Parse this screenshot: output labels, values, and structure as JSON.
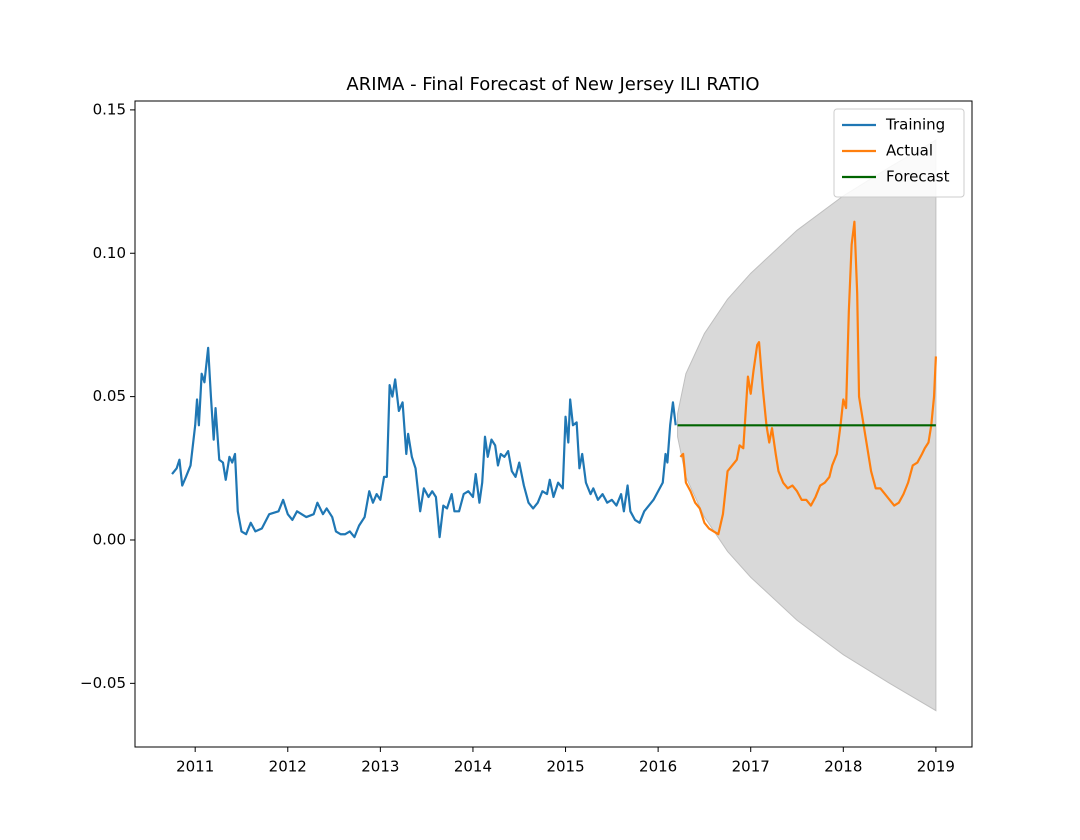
{
  "chart_data": {
    "type": "line",
    "title": "ARIMA - Final Forecast of New Jersey ILI RATIO",
    "xlim": [
      2010.35,
      2019.39
    ],
    "xticks": [
      2011,
      2012,
      2013,
      2014,
      2015,
      2016,
      2017,
      2018,
      2019
    ],
    "ylim": [
      -0.0722,
      0.1531
    ],
    "yticks": [
      {
        "value": -0.05,
        "label": "−0.05"
      },
      {
        "value": 0,
        "label": "0.00"
      },
      0.05,
      {
        "value": 0.1,
        "label": "0.10"
      },
      0.15
    ],
    "legend": "upper right",
    "series": [
      {
        "name": "Training",
        "color": "#1f77b4",
        "x": [
          2010.75,
          2010.8,
          2010.83,
          2010.86,
          2010.9,
          2010.95,
          2011.0,
          2011.02,
          2011.04,
          2011.07,
          2011.1,
          2011.14,
          2011.17,
          2011.2,
          2011.22,
          2011.26,
          2011.3,
          2011.33,
          2011.37,
          2011.4,
          2011.43,
          2011.46,
          2011.5,
          2011.55,
          2011.6,
          2011.65,
          2011.72,
          2011.8,
          2011.9,
          2011.95,
          2012.0,
          2012.05,
          2012.1,
          2012.2,
          2012.28,
          2012.32,
          2012.38,
          2012.42,
          2012.48,
          2012.52,
          2012.57,
          2012.62,
          2012.67,
          2012.72,
          2012.77,
          2012.83,
          2012.88,
          2012.92,
          2012.96,
          2013.0,
          2013.04,
          2013.07,
          2013.1,
          2013.13,
          2013.16,
          2013.2,
          2013.24,
          2013.28,
          2013.3,
          2013.34,
          2013.38,
          2013.43,
          2013.47,
          2013.52,
          2013.56,
          2013.6,
          2013.64,
          2013.68,
          2013.72,
          2013.77,
          2013.8,
          2013.85,
          2013.9,
          2013.95,
          2014.0,
          2014.03,
          2014.07,
          2014.1,
          2014.13,
          2014.16,
          2014.2,
          2014.24,
          2014.27,
          2014.3,
          2014.34,
          2014.38,
          2014.42,
          2014.46,
          2014.5,
          2014.55,
          2014.6,
          2014.65,
          2014.7,
          2014.75,
          2014.8,
          2014.83,
          2014.87,
          2014.92,
          2014.97,
          2015.0,
          2015.03,
          2015.05,
          2015.08,
          2015.12,
          2015.15,
          2015.18,
          2015.22,
          2015.27,
          2015.3,
          2015.35,
          2015.4,
          2015.45,
          2015.5,
          2015.55,
          2015.6,
          2015.63,
          2015.67,
          2015.7,
          2015.75,
          2015.8,
          2015.85,
          2015.9,
          2015.95,
          2016.0,
          2016.05,
          2016.08,
          2016.1,
          2016.13,
          2016.16,
          2016.19
        ],
        "values": [
          0.023,
          0.025,
          0.028,
          0.019,
          0.022,
          0.026,
          0.04,
          0.049,
          0.04,
          0.058,
          0.055,
          0.067,
          0.05,
          0.035,
          0.046,
          0.028,
          0.027,
          0.021,
          0.029,
          0.027,
          0.03,
          0.01,
          0.003,
          0.002,
          0.006,
          0.003,
          0.004,
          0.009,
          0.01,
          0.014,
          0.009,
          0.007,
          0.01,
          0.008,
          0.009,
          0.013,
          0.009,
          0.011,
          0.008,
          0.003,
          0.002,
          0.002,
          0.003,
          0.001,
          0.005,
          0.008,
          0.017,
          0.013,
          0.016,
          0.014,
          0.022,
          0.022,
          0.054,
          0.05,
          0.056,
          0.045,
          0.048,
          0.03,
          0.037,
          0.029,
          0.025,
          0.01,
          0.018,
          0.015,
          0.017,
          0.015,
          0.001,
          0.012,
          0.011,
          0.016,
          0.01,
          0.01,
          0.016,
          0.017,
          0.015,
          0.023,
          0.013,
          0.02,
          0.036,
          0.029,
          0.035,
          0.033,
          0.026,
          0.03,
          0.029,
          0.031,
          0.024,
          0.022,
          0.027,
          0.019,
          0.013,
          0.011,
          0.013,
          0.017,
          0.016,
          0.021,
          0.015,
          0.02,
          0.018,
          0.043,
          0.034,
          0.049,
          0.04,
          0.041,
          0.025,
          0.03,
          0.02,
          0.016,
          0.018,
          0.014,
          0.016,
          0.013,
          0.014,
          0.012,
          0.016,
          0.01,
          0.019,
          0.01,
          0.007,
          0.006,
          0.01,
          0.012,
          0.014,
          0.017,
          0.02,
          0.03,
          0.027,
          0.04,
          0.048,
          0.04
        ]
      },
      {
        "name": "Actual",
        "color": "#ff7f0e",
        "x": [
          2016.24,
          2016.27,
          2016.3,
          2016.35,
          2016.4,
          2016.45,
          2016.5,
          2016.55,
          2016.6,
          2016.65,
          2016.7,
          2016.75,
          2016.8,
          2016.85,
          2016.88,
          2016.92,
          2016.97,
          2017.0,
          2017.03,
          2017.07,
          2017.09,
          2017.13,
          2017.17,
          2017.2,
          2017.23,
          2017.27,
          2017.3,
          2017.35,
          2017.4,
          2017.45,
          2017.5,
          2017.55,
          2017.6,
          2017.65,
          2017.7,
          2017.75,
          2017.8,
          2017.85,
          2017.88,
          2017.93,
          2017.97,
          2018.0,
          2018.03,
          2018.06,
          2018.09,
          2018.12,
          2018.15,
          2018.17,
          2018.22,
          2018.26,
          2018.3,
          2018.35,
          2018.4,
          2018.45,
          2018.5,
          2018.55,
          2018.6,
          2018.65,
          2018.7,
          2018.75,
          2018.8,
          2018.85,
          2018.88,
          2018.92,
          2018.95,
          2018.98,
          2019.0
        ],
        "values": [
          0.029,
          0.03,
          0.02,
          0.017,
          0.013,
          0.011,
          0.006,
          0.004,
          0.003,
          0.002,
          0.009,
          0.024,
          0.026,
          0.028,
          0.033,
          0.032,
          0.057,
          0.051,
          0.059,
          0.068,
          0.069,
          0.053,
          0.04,
          0.034,
          0.039,
          0.03,
          0.024,
          0.02,
          0.018,
          0.019,
          0.017,
          0.014,
          0.014,
          0.012,
          0.015,
          0.019,
          0.02,
          0.022,
          0.026,
          0.03,
          0.04,
          0.049,
          0.046,
          0.08,
          0.103,
          0.111,
          0.086,
          0.05,
          0.04,
          0.032,
          0.024,
          0.018,
          0.018,
          0.016,
          0.014,
          0.012,
          0.013,
          0.016,
          0.02,
          0.026,
          0.027,
          0.03,
          0.032,
          0.034,
          0.04,
          0.05,
          0.064
        ]
      },
      {
        "name": "Forecast",
        "color": "#006400",
        "x": [
          2016.21,
          2019.0
        ],
        "values": [
          0.04,
          0.04
        ]
      }
    ],
    "interval": {
      "color": "#d9d9d9",
      "x": [
        2016.21,
        2016.3,
        2016.5,
        2016.75,
        2017.0,
        2017.5,
        2018.0,
        2018.5,
        2019.0
      ],
      "lower": [
        0.036,
        0.022,
        0.008,
        -0.004,
        -0.013,
        -0.028,
        -0.04,
        -0.05,
        -0.0595
      ],
      "upper": [
        0.044,
        0.058,
        0.072,
        0.084,
        0.093,
        0.108,
        0.12,
        0.13,
        0.1395
      ]
    }
  }
}
